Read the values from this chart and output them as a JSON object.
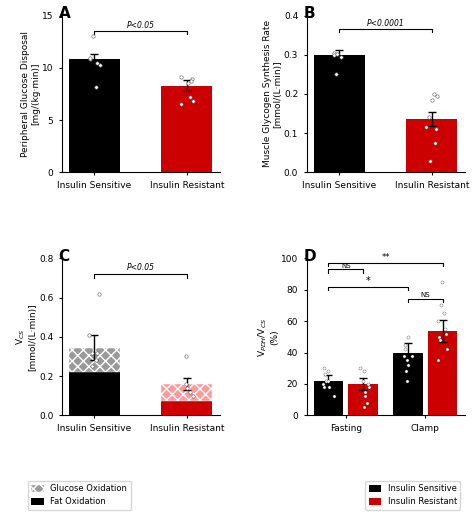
{
  "A": {
    "bars": [
      10.8,
      8.3
    ],
    "errors": [
      0.55,
      0.55
    ],
    "colors": [
      "#000000",
      "#cc0000"
    ],
    "ylabel": "Peripheral Glucose Disposal\n[mg/(kg·min)]",
    "yticks": [
      0,
      5,
      10,
      15
    ],
    "ylim": [
      0,
      15
    ],
    "ptext": "P<0.05",
    "scatter_IS": [
      13.0,
      10.3,
      10.5,
      8.2,
      10.8,
      10.9
    ],
    "scatter_IR": [
      9.1,
      8.9,
      8.5,
      7.2,
      6.5,
      6.8,
      8.7
    ]
  },
  "B": {
    "bars": [
      0.3,
      0.135
    ],
    "errors": [
      0.012,
      0.018
    ],
    "colors": [
      "#000000",
      "#cc0000"
    ],
    "ylabel": "Muscle Glycogen Synthesis Rate\n[mmol/(L·min)]",
    "yticks": [
      0.0,
      0.1,
      0.2,
      0.3,
      0.4
    ],
    "ylim": [
      0,
      0.4
    ],
    "ptext": "P<0.0001",
    "scatter_IS": [
      0.305,
      0.295,
      0.3,
      0.25,
      0.302
    ],
    "scatter_IR": [
      0.195,
      0.2,
      0.185,
      0.115,
      0.075,
      0.03,
      0.11,
      0.14
    ]
  },
  "C": {
    "bars_fat": [
      0.22,
      0.075
    ],
    "bars_gluc": [
      0.125,
      0.085
    ],
    "errors": [
      0.065,
      0.03
    ],
    "ylabel": "V$_{CS}$\n[mmol/(L·min)]",
    "yticks": [
      0.0,
      0.2,
      0.4,
      0.6,
      0.8
    ],
    "ylim": [
      0,
      0.8
    ],
    "ptext": "P<0.05",
    "scatter_IS": [
      0.62,
      0.41,
      0.32,
      0.25,
      0.32,
      0.28
    ],
    "scatter_IR": [
      0.3,
      0.16,
      0.14,
      0.12,
      0.1
    ]
  },
  "D": {
    "groups": [
      "Fasting",
      "Clamp"
    ],
    "bars_IS": [
      22,
      40
    ],
    "bars_IR": [
      20,
      54
    ],
    "errors_IS": [
      3.5,
      6
    ],
    "errors_IR": [
      4,
      7
    ],
    "colors": [
      "#000000",
      "#cc0000"
    ],
    "ylabel": "V$_{PDH}$/V$_{CS}$\n(%)",
    "yticks": [
      0,
      20,
      40,
      60,
      80,
      100
    ],
    "ylim": [
      0,
      100
    ],
    "scatter_fasting_IS": [
      12,
      18,
      22,
      30,
      28,
      22,
      20,
      26,
      18
    ],
    "scatter_fasting_IR": [
      5,
      8,
      12,
      18,
      22,
      28,
      30,
      20,
      15
    ],
    "scatter_clamp_IS": [
      22,
      28,
      32,
      38,
      45,
      50,
      42,
      35,
      38
    ],
    "scatter_clamp_IR": [
      35,
      42,
      50,
      55,
      60,
      65,
      70,
      52,
      48,
      85
    ]
  },
  "bg_color": "#ffffff",
  "bar_width": 0.55,
  "fontsize_label": 6.5,
  "fontsize_tick": 6.5,
  "fontsize_panel": 11
}
